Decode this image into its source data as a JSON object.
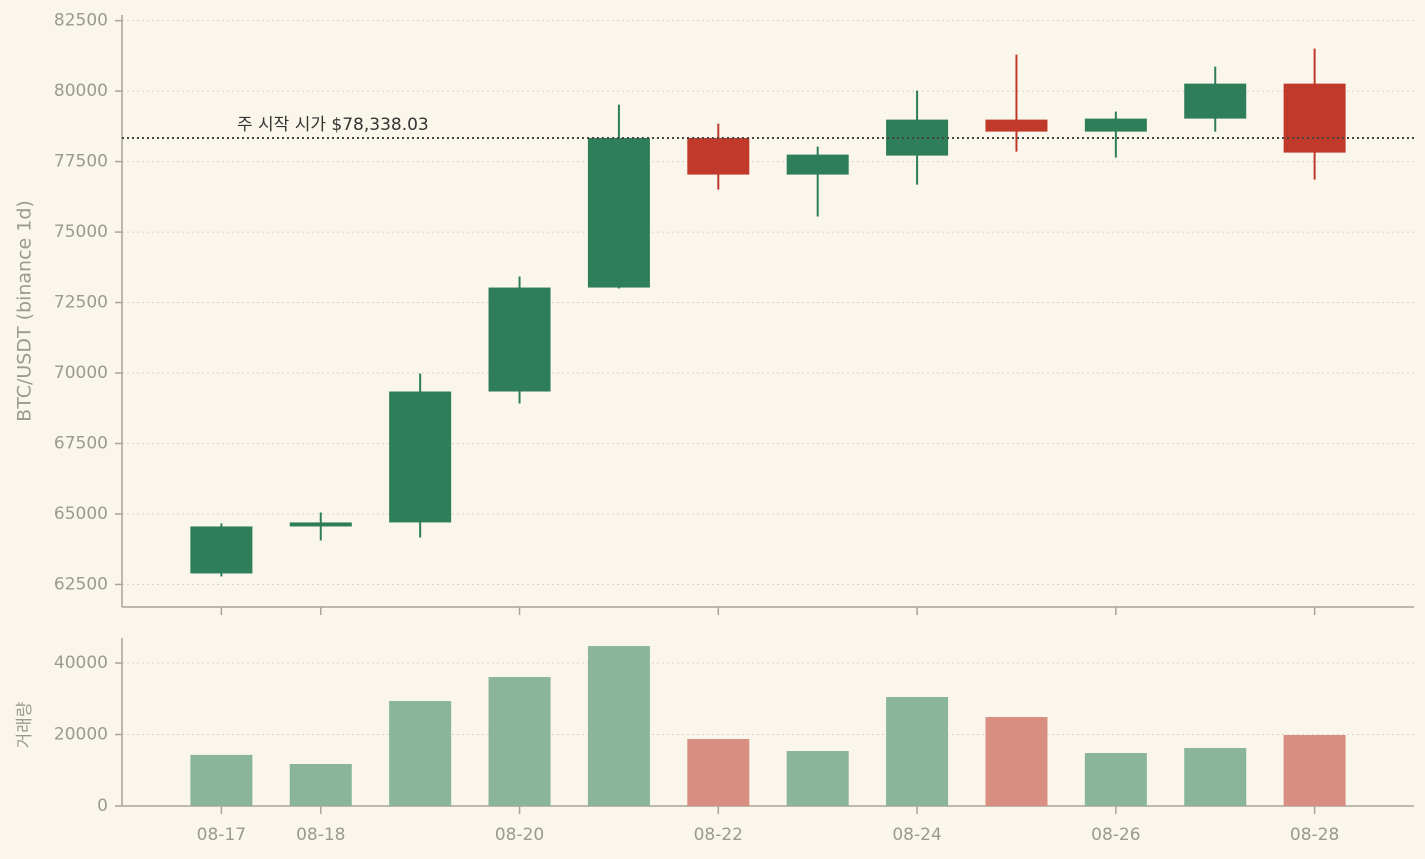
{
  "chart_data": [
    {
      "type": "candlestick",
      "y_label": "BTC/USDT (binance 1d)",
      "open": [
        62890,
        64557,
        64700,
        69344,
        73032,
        78338,
        77039,
        77713,
        78989,
        78564,
        79025,
        80266
      ],
      "high": [
        64664,
        65053,
        69983,
        73422,
        79521,
        78848,
        78032,
        80018,
        81294,
        79273,
        80869,
        81507
      ],
      "low": [
        62784,
        64060,
        64167,
        68919,
        73000,
        76507,
        75550,
        76685,
        77855,
        77642,
        78564,
        76862
      ],
      "close": [
        64557,
        64700,
        69344,
        73032,
        78338,
        77039,
        77748,
        78989,
        78564,
        79025,
        80266,
        77819
      ],
      "up_color": "#2e7d5b",
      "down_color": "#c0392b",
      "hline": 78338.03,
      "annotation": "주 시작 시가 $78,338.03",
      "ylim": [
        61700,
        82700
      ],
      "yticks": [
        62500,
        65000,
        67500,
        70000,
        72500,
        75000,
        77500,
        80000,
        82500
      ],
      "grid": true
    },
    {
      "type": "bar",
      "y_label": "거래량",
      "categories": [
        "08-17",
        "08-18",
        null,
        "08-20",
        null,
        "08-22",
        null,
        "08-24",
        null,
        "08-26",
        null,
        "08-28"
      ],
      "values": [
        14300,
        11750,
        29370,
        36080,
        44750,
        18740,
        15380,
        30490,
        24890,
        14820,
        16220,
        19860
      ],
      "up_color": "#8ab59c",
      "down_color": "#d98e82",
      "ylim": [
        0,
        47000
      ],
      "yticks": [
        0,
        20000,
        40000
      ],
      "grid": true
    }
  ]
}
